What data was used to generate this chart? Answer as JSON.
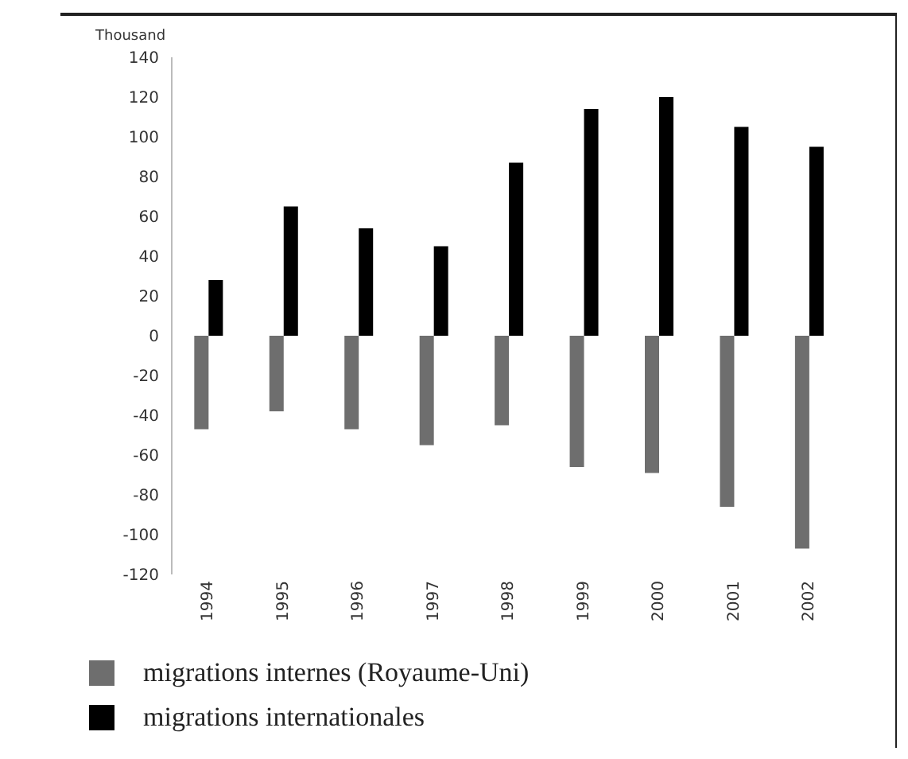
{
  "chart_data": {
    "type": "bar",
    "ylabel": "Thousand",
    "categories": [
      "1994",
      "1995",
      "1996",
      "1997",
      "1998",
      "1999",
      "2000",
      "2001",
      "2002"
    ],
    "series": [
      {
        "name": "migrations internes (Royaume-Uni)",
        "color": "#6e6e6e",
        "values": [
          -47,
          -38,
          -47,
          -55,
          -45,
          -66,
          -69,
          -86,
          -107
        ]
      },
      {
        "name": "migrations internationales",
        "color": "#000000",
        "values": [
          28,
          65,
          54,
          45,
          87,
          114,
          120,
          105,
          95
        ]
      }
    ],
    "ylim": [
      -120,
      140
    ],
    "yticks": [
      -120,
      -100,
      -80,
      -60,
      -40,
      -20,
      0,
      20,
      40,
      60,
      80,
      100,
      120,
      140
    ],
    "legend": "bottom",
    "grid": false
  }
}
